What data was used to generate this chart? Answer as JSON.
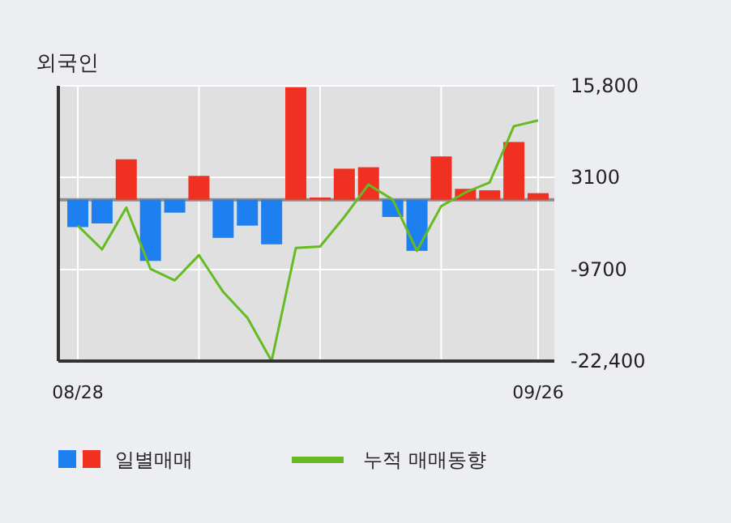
{
  "chart_data": {
    "type": "bar",
    "title": "외국인",
    "categories": [
      "08/28",
      null,
      null,
      null,
      null,
      null,
      null,
      null,
      null,
      null,
      null,
      null,
      null,
      null,
      null,
      null,
      null,
      null,
      null,
      "09/26"
    ],
    "series": [
      {
        "name": "일별매매",
        "colors": [
          "#1e7ff0",
          "#1e7ff0",
          "#f03020",
          "#1e7ff0",
          "#1e7ff0",
          "#f03020",
          "#1e7ff0",
          "#1e7ff0",
          "#1e7ff0",
          "#f03020",
          "#f03020",
          "#f03020",
          "#f03020",
          "#1e7ff0",
          "#1e7ff0",
          "#f03020",
          "#f03020",
          "#f03020",
          "#f03020",
          "#f03020"
        ],
        "values": [
          -3800,
          -3300,
          5600,
          -8500,
          -1800,
          3300,
          -5300,
          -3600,
          -6200,
          15600,
          300,
          4300,
          4500,
          -2400,
          -7100,
          6000,
          1500,
          1300,
          8000,
          900
        ]
      },
      {
        "name": "누적 매매동향",
        "type": "line",
        "color": "#66bb22",
        "values": [
          -3600,
          -6900,
          -1100,
          -9600,
          -11200,
          -7700,
          -12800,
          -16400,
          -22400,
          -6700,
          -6500,
          -2400,
          2100,
          0,
          -7100,
          -900,
          1000,
          2400,
          10200,
          11000
        ]
      }
    ],
    "ylim": [
      -22400,
      15800
    ],
    "yticks": [
      {
        "value": 15800,
        "label": "15,800"
      },
      3100,
      -9700,
      {
        "value": -22400,
        "label": "-22,400"
      }
    ],
    "grid": true,
    "legend": "bottom",
    "marker": "none"
  }
}
